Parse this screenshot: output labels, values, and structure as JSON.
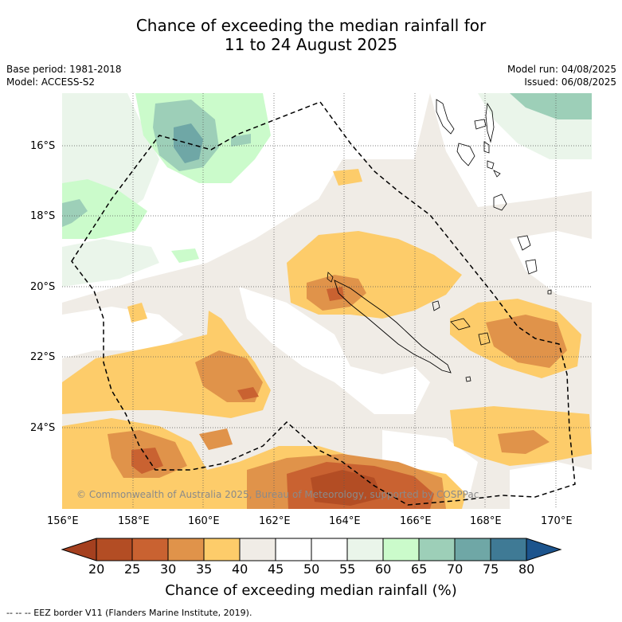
{
  "title": {
    "line1": "Chance of exceeding the median rainfall for",
    "line2": "11 to 24 August 2025"
  },
  "meta": {
    "base_period": "Base period: 1981-2018",
    "model": "Model: ACCESS-S2",
    "model_run": "Model run: 04/08/2025",
    "issued": "Issued: 06/08/2025"
  },
  "map": {
    "lon_range": [
      156,
      171
    ],
    "lat_range": [
      -26.3,
      -14.5
    ],
    "lon_ticks": [
      "156°E",
      "158°E",
      "160°E",
      "162°E",
      "164°E",
      "166°E",
      "168°E",
      "170°E"
    ],
    "lat_ticks": [
      "16°S",
      "18°S",
      "20°S",
      "22°S",
      "24°S"
    ],
    "grid": true,
    "copyright": "© Commonwealth of Australia 2025, Bureau of Meteorology, supported by COSPPac"
  },
  "colorbar": {
    "title": "Chance of exceeding median rainfall (%)",
    "tick_labels": [
      "20",
      "25",
      "30",
      "35",
      "40",
      "45",
      "50",
      "55",
      "60",
      "65",
      "70",
      "75",
      "80"
    ],
    "colors": [
      "#a5401f",
      "#b34d24",
      "#c96231",
      "#e0934a",
      "#fdcc6a",
      "#f0ece6",
      "#ffffff",
      "#ffffff",
      "#eaf5ea",
      "#cbfbcb",
      "#9dcfb8",
      "#6fa7a6",
      "#3f7a95",
      "#1c548d"
    ]
  },
  "footnote": "--  --  -- EEZ border V11 (Flanders Marine Institute, 2019)."
}
